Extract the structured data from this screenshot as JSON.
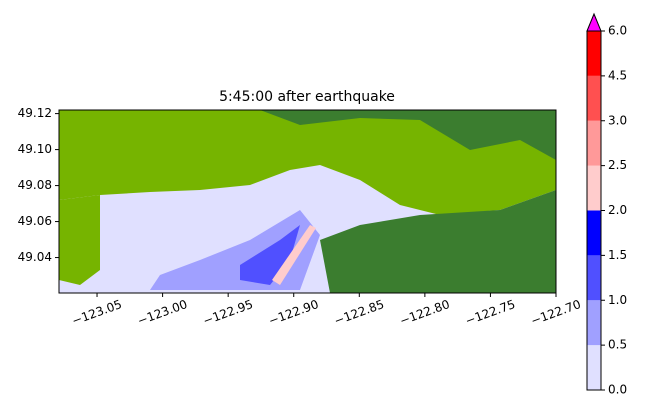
{
  "chart_data": {
    "type": "map",
    "title": "5:45:00 after earthquake",
    "xlim": [
      -123.079,
      -122.7
    ],
    "ylim": [
      49.0203,
      49.122
    ],
    "xticks": [
      {
        "value": -123.05,
        "label": "−123.05"
      },
      {
        "value": -123.0,
        "label": "−123.00"
      },
      {
        "value": -122.95,
        "label": "−122.95"
      },
      {
        "value": -122.9,
        "label": "−122.90"
      },
      {
        "value": -122.85,
        "label": "−122.85"
      },
      {
        "value": -122.8,
        "label": "−122.80"
      },
      {
        "value": -122.75,
        "label": "−122.75"
      },
      {
        "value": -122.7,
        "label": "−122.70"
      }
    ],
    "yticks": [
      {
        "value": 49.04,
        "label": "49.04"
      },
      {
        "value": 49.06,
        "label": "49.06"
      },
      {
        "value": 49.08,
        "label": "49.08"
      },
      {
        "value": 49.1,
        "label": "49.10"
      },
      {
        "value": 49.12,
        "label": "49.12"
      }
    ],
    "colorbar": {
      "ticks": [
        {
          "value": 0,
          "label": "0.0"
        },
        0.5,
        {
          "value": 1,
          "label": "1.0"
        },
        1.5,
        {
          "value": 2,
          "label": "2.0"
        },
        2.5,
        {
          "value": 3,
          "label": "3.0"
        },
        4.5,
        {
          "value": 6,
          "label": "6.0"
        }
      ],
      "colors": [
        "#e0e0ff",
        "#a0a0ff",
        "#5050ff",
        "#0000ff",
        "#ffcccc",
        "#ff9999",
        "#ff5050",
        "#ff0000"
      ],
      "over_color": "#ff00ff"
    }
  }
}
